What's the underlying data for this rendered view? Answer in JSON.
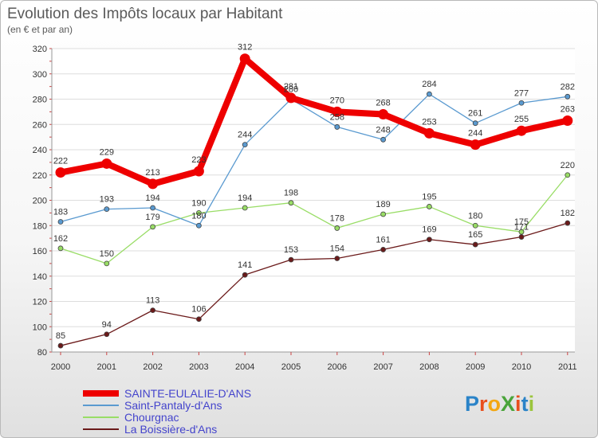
{
  "chart_data": {
    "type": "line",
    "title": "Evolution des Impôts locaux par Habitant",
    "subtitle": "(en € et par an)",
    "xlabel": "",
    "ylabel": "",
    "categories": [
      "2000",
      "2001",
      "2002",
      "2003",
      "2004",
      "2005",
      "2006",
      "2007",
      "2008",
      "2009",
      "2010",
      "2011"
    ],
    "ylim": [
      80,
      320
    ],
    "yticks": [
      80,
      100,
      120,
      140,
      160,
      180,
      200,
      220,
      240,
      260,
      280,
      300,
      320
    ],
    "grid": "horizontal",
    "legend_position": "bottom-left",
    "series": [
      {
        "name": "La Boissière-d'Ans",
        "color": "#6b1a1a",
        "values": [
          85,
          94,
          113,
          106,
          141,
          153,
          154,
          161,
          169,
          165,
          171,
          182
        ],
        "labels": [
          "85",
          "94",
          "113",
          "106",
          "141",
          "153",
          "154",
          "161",
          "169",
          "165",
          "171",
          "182"
        ]
      },
      {
        "name": "Chourgnac",
        "color": "#99dd66",
        "values": [
          162,
          150,
          179,
          190,
          194,
          198,
          178,
          189,
          195,
          180,
          175,
          220
        ],
        "labels": [
          "162",
          "150",
          "179",
          "190",
          "194",
          "198",
          "178",
          "189",
          "195",
          "180",
          "175",
          "220"
        ]
      },
      {
        "name": "Saint-Pantaly-d'Ans",
        "color": "#5a9ad0",
        "values": [
          183,
          193,
          194,
          180,
          244,
          280,
          258,
          248,
          284,
          261,
          277,
          282
        ],
        "labels": [
          "183",
          "193",
          "194",
          "180",
          "244",
          "280",
          "258",
          "248",
          "284",
          "261",
          "277",
          "282"
        ]
      },
      {
        "name": "SAINTE-EULALIE-D'ANS",
        "color": "#ee0000",
        "values": [
          222,
          229,
          213,
          223,
          312,
          281,
          270,
          268,
          253,
          244,
          255,
          263
        ],
        "labels": [
          "222",
          "229",
          "213",
          "223",
          "312",
          "281",
          "270",
          "268",
          "253",
          "244",
          "255",
          "263"
        ]
      }
    ],
    "legend": [
      "SAINTE-EULALIE-D'ANS",
      "Saint-Pantaly-d'Ans",
      "Chourgnac",
      "La Boissière-d'Ans"
    ],
    "legend_text_color": "#4444cc"
  },
  "logo": {
    "text": "ProXiti",
    "letters": [
      "P",
      "r",
      "o",
      "X",
      "i",
      "t",
      "i"
    ],
    "colors": [
      "#2a83c8",
      "#e94f1d",
      "#f3a712",
      "#4aa43a",
      "#e94f1d",
      "#2a83c8",
      "#9bc53d"
    ]
  }
}
